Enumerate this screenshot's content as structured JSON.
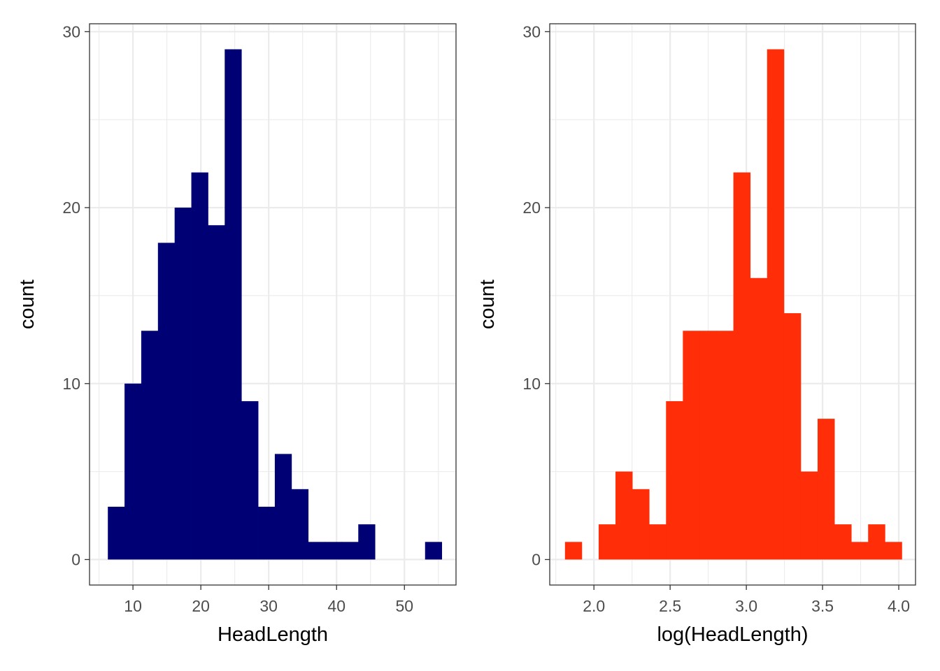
{
  "chart_data": [
    {
      "type": "bar",
      "variant": "histogram",
      "title": "",
      "xlabel": "HeadLength",
      "ylabel": "count",
      "xlim": [
        3.6,
        57.6
      ],
      "ylim": [
        -1.45,
        30.45
      ],
      "xticks": [
        10,
        20,
        30,
        40,
        50
      ],
      "yticks": [
        0,
        10,
        20,
        30
      ],
      "grid": true,
      "legend": "none",
      "fill_color": "#000075",
      "bin_width": 2.46,
      "bin_start": 6.3,
      "values": [
        3,
        10,
        13,
        18,
        20,
        22,
        19,
        29,
        9,
        3,
        6,
        4,
        1,
        1,
        1,
        2,
        0,
        0,
        0,
        1
      ]
    },
    {
      "type": "bar",
      "variant": "histogram",
      "title": "",
      "xlabel": "log(HeadLength)",
      "ylabel": "count",
      "xlim": [
        1.71,
        4.11
      ],
      "ylim": [
        -1.45,
        30.45
      ],
      "xticks": [
        2.0,
        2.5,
        3.0,
        3.5,
        4.0
      ],
      "yticks": [
        0,
        10,
        20,
        30
      ],
      "grid": true,
      "legend": "none",
      "fill_color": "#FF2D08",
      "bin_width": 0.1105,
      "bin_start": 1.81,
      "values": [
        1,
        0,
        2,
        5,
        4,
        2,
        9,
        13,
        13,
        13,
        22,
        16,
        29,
        14,
        5,
        8,
        2,
        1,
        2,
        1
      ]
    }
  ]
}
